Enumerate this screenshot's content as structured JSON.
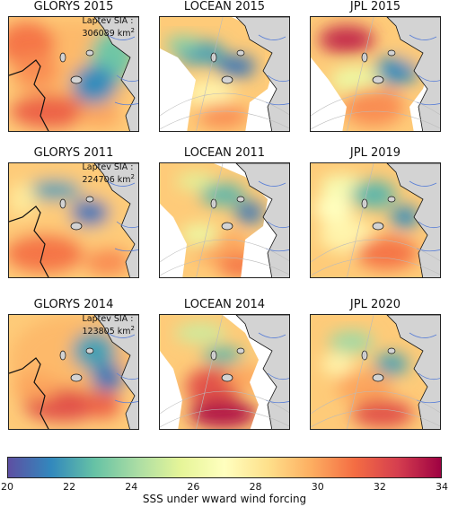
{
  "panels": [
    {
      "title": "GLORYS 2015",
      "sia_label": "Laptev SIA :",
      "sia_value": "306089 km",
      "sia_unit_exp": "2"
    },
    {
      "title": "LOCEAN 2015"
    },
    {
      "title": "JPL 2015"
    },
    {
      "title": "GLORYS 2011",
      "sia_label": "Laptev SIA :",
      "sia_value": "224706 km",
      "sia_unit_exp": "2"
    },
    {
      "title": "LOCEAN 2011"
    },
    {
      "title": "JPL 2019"
    },
    {
      "title": "GLORYS 2014",
      "sia_label": "Laptev SIA :",
      "sia_value": "123805 km",
      "sia_unit_exp": "2"
    },
    {
      "title": "LOCEAN 2014"
    },
    {
      "title": "JPL 2020"
    }
  ],
  "colorbar": {
    "label": "SSS under wward wind forcing",
    "min": 20,
    "max": 34,
    "ticks": [
      "20",
      "22",
      "24",
      "26",
      "28",
      "30",
      "32",
      "34"
    ],
    "colormap": "Spectral_r",
    "colors": [
      "#5e4fa2",
      "#3288bd",
      "#66c2a5",
      "#abdda4",
      "#e6f598",
      "#ffffbf",
      "#fee08b",
      "#fdae61",
      "#f46d43",
      "#d53e4f",
      "#9e0142"
    ]
  },
  "chart_data": {
    "type": "heatmap",
    "description_of_grid": "3x3 map panels of sea surface salinity",
    "panels": [
      "GLORYS 2015",
      "LOCEAN 2015",
      "JPL 2015",
      "GLORYS 2011",
      "LOCEAN 2011",
      "JPL 2019",
      "GLORYS 2014",
      "LOCEAN 2014",
      "JPL 2020"
    ],
    "value_range": [
      20,
      34
    ],
    "land_color": "#d3d3d3",
    "river_color": "#5a7fd6"
  }
}
